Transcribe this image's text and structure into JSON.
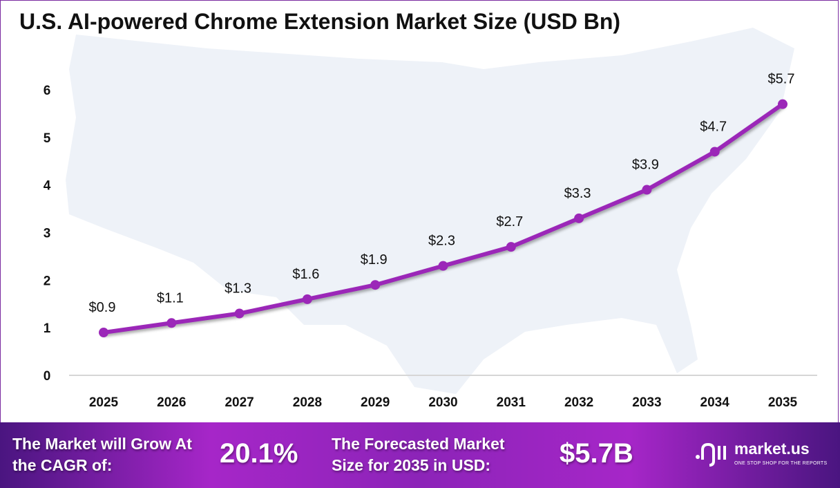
{
  "chart_data": {
    "type": "line",
    "title": "U.S. AI-powered Chrome Extension Market Size (USD Bn)",
    "categories": [
      "2025",
      "2026",
      "2027",
      "2028",
      "2029",
      "2030",
      "2031",
      "2032",
      "2033",
      "2034",
      "2035"
    ],
    "values": [
      0.9,
      1.1,
      1.3,
      1.6,
      1.9,
      2.3,
      2.7,
      3.3,
      3.9,
      4.7,
      5.7
    ],
    "data_labels": [
      "$0.9",
      "$1.1",
      "$1.3",
      "$1.6",
      "$1.9",
      "$2.3",
      "$2.7",
      "$3.3",
      "$3.9",
      "$4.7",
      "$5.7"
    ],
    "yticks": [
      "0",
      "1",
      "2",
      "3",
      "4",
      "5",
      "6"
    ],
    "ylim": [
      0,
      6
    ],
    "grid": false,
    "line_color": "#9b27b8",
    "xlabel": "",
    "ylabel": ""
  },
  "footer": {
    "cagr_label": "The Market will Grow At the CAGR of:",
    "cagr_value": "20.1%",
    "forecast_label": "The Forecasted Market Size for 2035 in USD:",
    "forecast_value": "$5.7B",
    "logo_name": "market.us",
    "logo_tagline": "ONE STOP SHOP FOR THE REPORTS"
  }
}
